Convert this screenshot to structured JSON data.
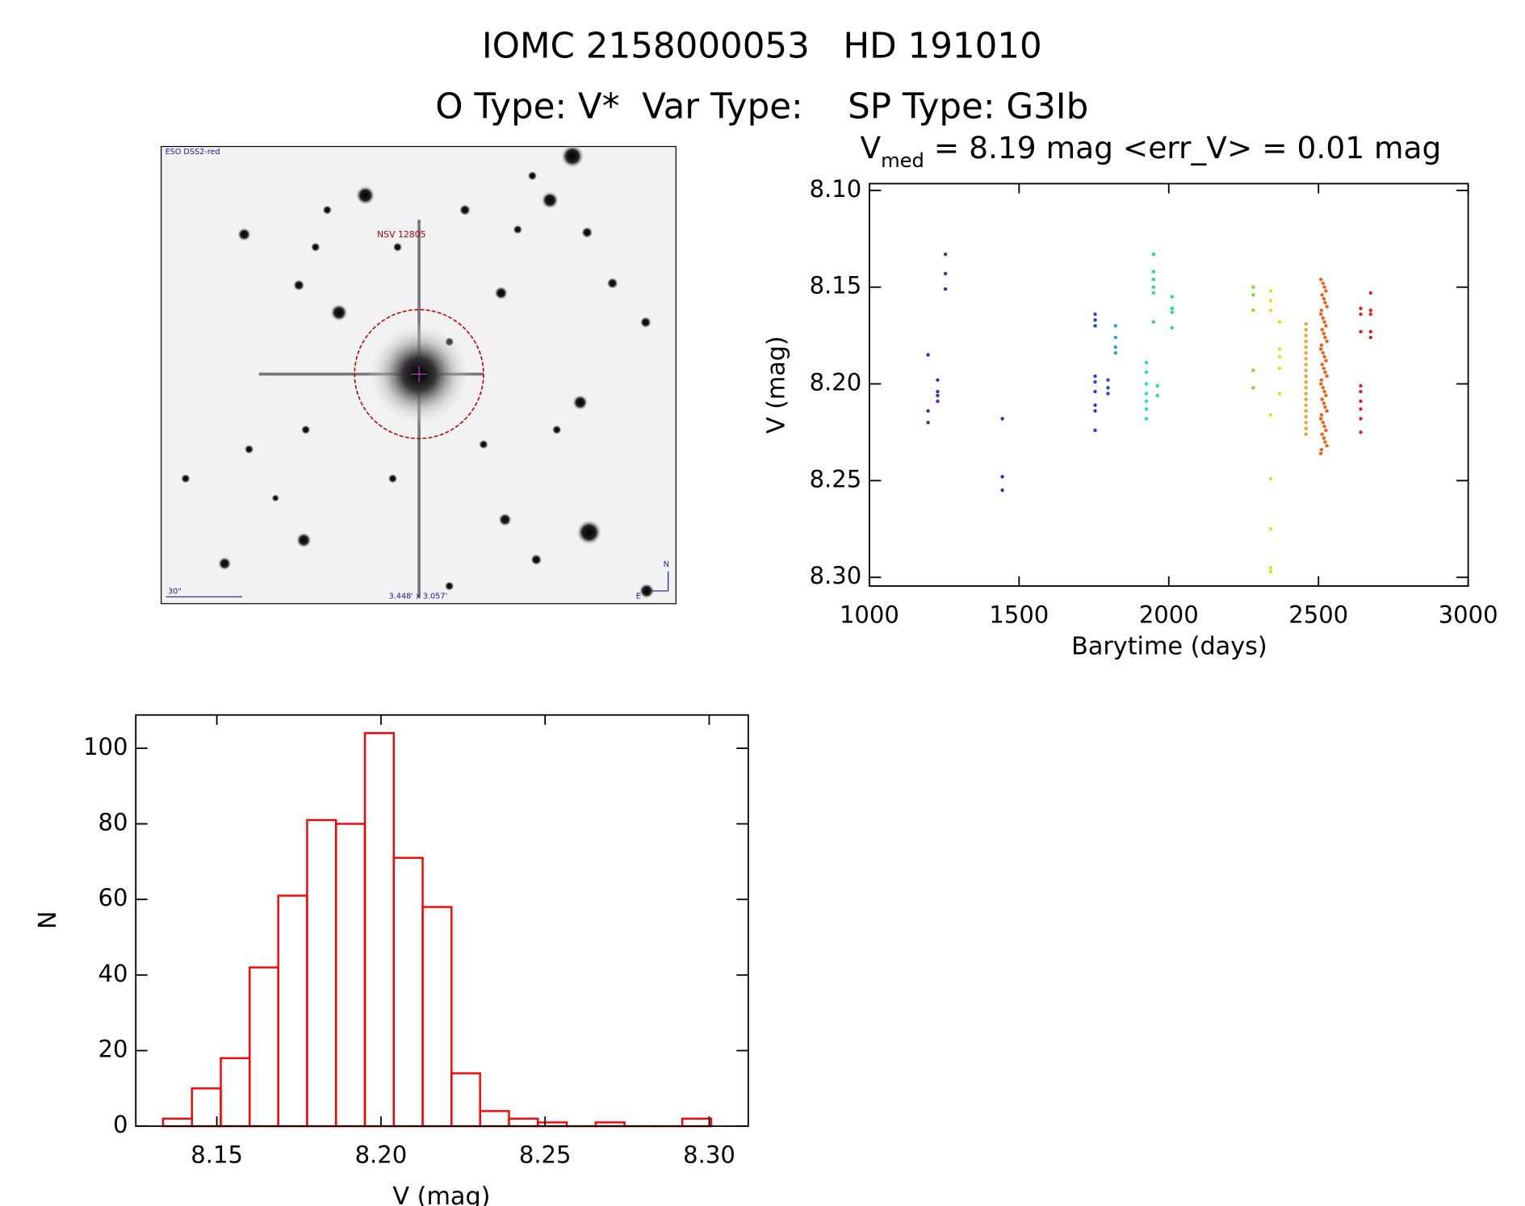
{
  "header": {
    "title": "IOMC 2158000053   HD 191010",
    "subtitle": "O Type: V*  Var Type:    SP Type: G3Ib"
  },
  "image": {
    "survey": "ESO DSS2-red",
    "target": "NSV 12805",
    "scale": "30\"",
    "fov": "3.448' x 3.057'",
    "north": "N",
    "east": "E"
  },
  "chart_data": [
    {
      "type": "scatter",
      "title": {
        "main": "V",
        "sub": "med",
        "rest": " = 8.19 mag <err_V> = 0.01 mag"
      },
      "x_label": "Barytime (days)",
      "y_label": "V (mag)",
      "xlim": [
        1000,
        3000
      ],
      "xticks": [
        1000,
        1500,
        2000,
        2500,
        3000
      ],
      "ylim": [
        8.3045,
        8.0965
      ],
      "yticks": [
        {
          "value": 8.1,
          "label": "8.10"
        },
        8.15,
        {
          "value": 8.2,
          "label": "8.20"
        },
        8.25,
        {
          "value": 8.3,
          "label": "8.30"
        }
      ],
      "series": [
        {
          "color": "#5a1fa8",
          "x": [
            1196,
            1196,
            1196,
            1228,
            1228,
            1228,
            1228,
            1254,
            1254,
            1254
          ],
          "values": [
            8.185,
            8.214,
            8.22,
            8.198,
            8.204,
            8.206,
            8.209,
            8.133,
            8.143,
            8.151
          ]
        },
        {
          "color": "#3a20b8",
          "x": [
            1444,
            1444,
            1444
          ],
          "values": [
            8.218,
            8.248,
            8.255
          ]
        },
        {
          "color": "#2040e0",
          "x": [
            1754,
            1754,
            1754,
            1754,
            1754,
            1754,
            1754,
            1754,
            1754,
            1797,
            1797,
            1797
          ],
          "values": [
            8.164,
            8.167,
            8.17,
            8.196,
            8.199,
            8.204,
            8.211,
            8.214,
            8.224,
            8.198,
            8.202,
            8.205
          ]
        },
        {
          "color": "#20a0e0",
          "x": [
            1822,
            1822,
            1822,
            1822
          ],
          "values": [
            8.17,
            8.176,
            8.181,
            8.184
          ]
        },
        {
          "color": "#20e0d0",
          "x": [
            1925,
            1925,
            1925,
            1925,
            1925,
            1925,
            1925
          ],
          "values": [
            8.189,
            8.194,
            8.2,
            8.205,
            8.209,
            8.213,
            8.218
          ]
        },
        {
          "color": "#20e080",
          "x": [
            1949,
            1949,
            1949,
            1949,
            1949,
            1949,
            1962,
            1962,
            2011,
            2011,
            2011,
            2011
          ],
          "values": [
            8.133,
            8.142,
            8.146,
            8.15,
            8.153,
            8.168,
            8.201,
            8.206,
            8.155,
            8.161,
            8.163,
            8.171
          ]
        },
        {
          "color": "#80e020",
          "x": [
            2282,
            2282,
            2282,
            2282,
            2282
          ],
          "values": [
            8.15,
            8.154,
            8.162,
            8.193,
            8.202
          ]
        },
        {
          "color": "#d8e020",
          "x": [
            2340,
            2340,
            2340,
            2340,
            2340,
            2340,
            2340,
            2340,
            2370,
            2370,
            2370,
            2370,
            2370
          ],
          "values": [
            8.152,
            8.157,
            8.162,
            8.216,
            8.249,
            8.275,
            8.295,
            8.297,
            8.168,
            8.182,
            8.186,
            8.192,
            8.205
          ]
        },
        {
          "color": "#f0a020",
          "x": [
            2458,
            2458,
            2458,
            2458,
            2458,
            2458,
            2458,
            2458,
            2458,
            2458,
            2458,
            2458,
            2458,
            2458,
            2458,
            2458,
            2458,
            2458,
            2458,
            2458
          ],
          "values": [
            8.169,
            8.172,
            8.175,
            8.178,
            8.181,
            8.184,
            8.187,
            8.19,
            8.193,
            8.196,
            8.199,
            8.202,
            8.205,
            8.208,
            8.211,
            8.214,
            8.217,
            8.22,
            8.223,
            8.226
          ]
        },
        {
          "color": "#f06010",
          "x": [
            2508,
            2515,
            2520,
            2525,
            2512,
            2518,
            2522,
            2528,
            2510,
            2508,
            2515,
            2520,
            2525,
            2512,
            2518,
            2522,
            2528,
            2510,
            2508,
            2515,
            2520,
            2525,
            2512,
            2518,
            2522,
            2528,
            2510,
            2508,
            2515,
            2520,
            2525,
            2512,
            2518,
            2522,
            2528,
            2510,
            2508,
            2515,
            2520,
            2525,
            2512,
            2518,
            2522,
            2528,
            2510,
            2508
          ],
          "values": [
            8.146,
            8.148,
            8.15,
            8.152,
            8.154,
            8.156,
            8.158,
            8.16,
            8.162,
            8.164,
            8.166,
            8.168,
            8.17,
            8.172,
            8.174,
            8.176,
            8.178,
            8.18,
            8.182,
            8.184,
            8.186,
            8.188,
            8.19,
            8.192,
            8.194,
            8.196,
            8.198,
            8.2,
            8.202,
            8.204,
            8.206,
            8.208,
            8.21,
            8.212,
            8.214,
            8.216,
            8.218,
            8.22,
            8.222,
            8.224,
            8.226,
            8.228,
            8.23,
            8.232,
            8.234,
            8.236
          ]
        },
        {
          "color": "#e02020",
          "x": [
            2641,
            2641,
            2641,
            2641,
            2641,
            2641,
            2641,
            2641,
            2641,
            2674,
            2674,
            2674,
            2674,
            2674
          ],
          "values": [
            8.161,
            8.164,
            8.173,
            8.201,
            8.204,
            8.209,
            8.213,
            8.218,
            8.225,
            8.153,
            8.162,
            8.164,
            8.173,
            8.176
          ]
        }
      ]
    },
    {
      "type": "histogram",
      "x_label": "V (mag)",
      "y_label": "N",
      "color": "#ff0000",
      "bins": [
        8.1336,
        8.1424,
        8.1512,
        8.16,
        8.1687,
        8.1775,
        8.1863,
        8.1951,
        8.2039,
        8.2127,
        8.2215,
        8.2302,
        8.239,
        8.2478,
        8.2566,
        8.2654,
        8.2742,
        8.283,
        8.2918,
        8.3006
      ],
      "values": [
        2,
        10,
        18,
        42,
        61,
        81,
        80,
        104,
        71,
        58,
        14,
        4,
        2,
        1,
        0,
        1,
        0,
        0,
        2
      ],
      "xlim": [
        8.1253,
        8.3119
      ],
      "xticks": [
        8.15,
        {
          "value": 8.2,
          "label": "8.20"
        },
        8.25,
        {
          "value": 8.3,
          "label": "8.30"
        }
      ],
      "ylim": [
        0,
        108.8
      ],
      "yticks": [
        0,
        20,
        40,
        60,
        80,
        100
      ]
    }
  ]
}
